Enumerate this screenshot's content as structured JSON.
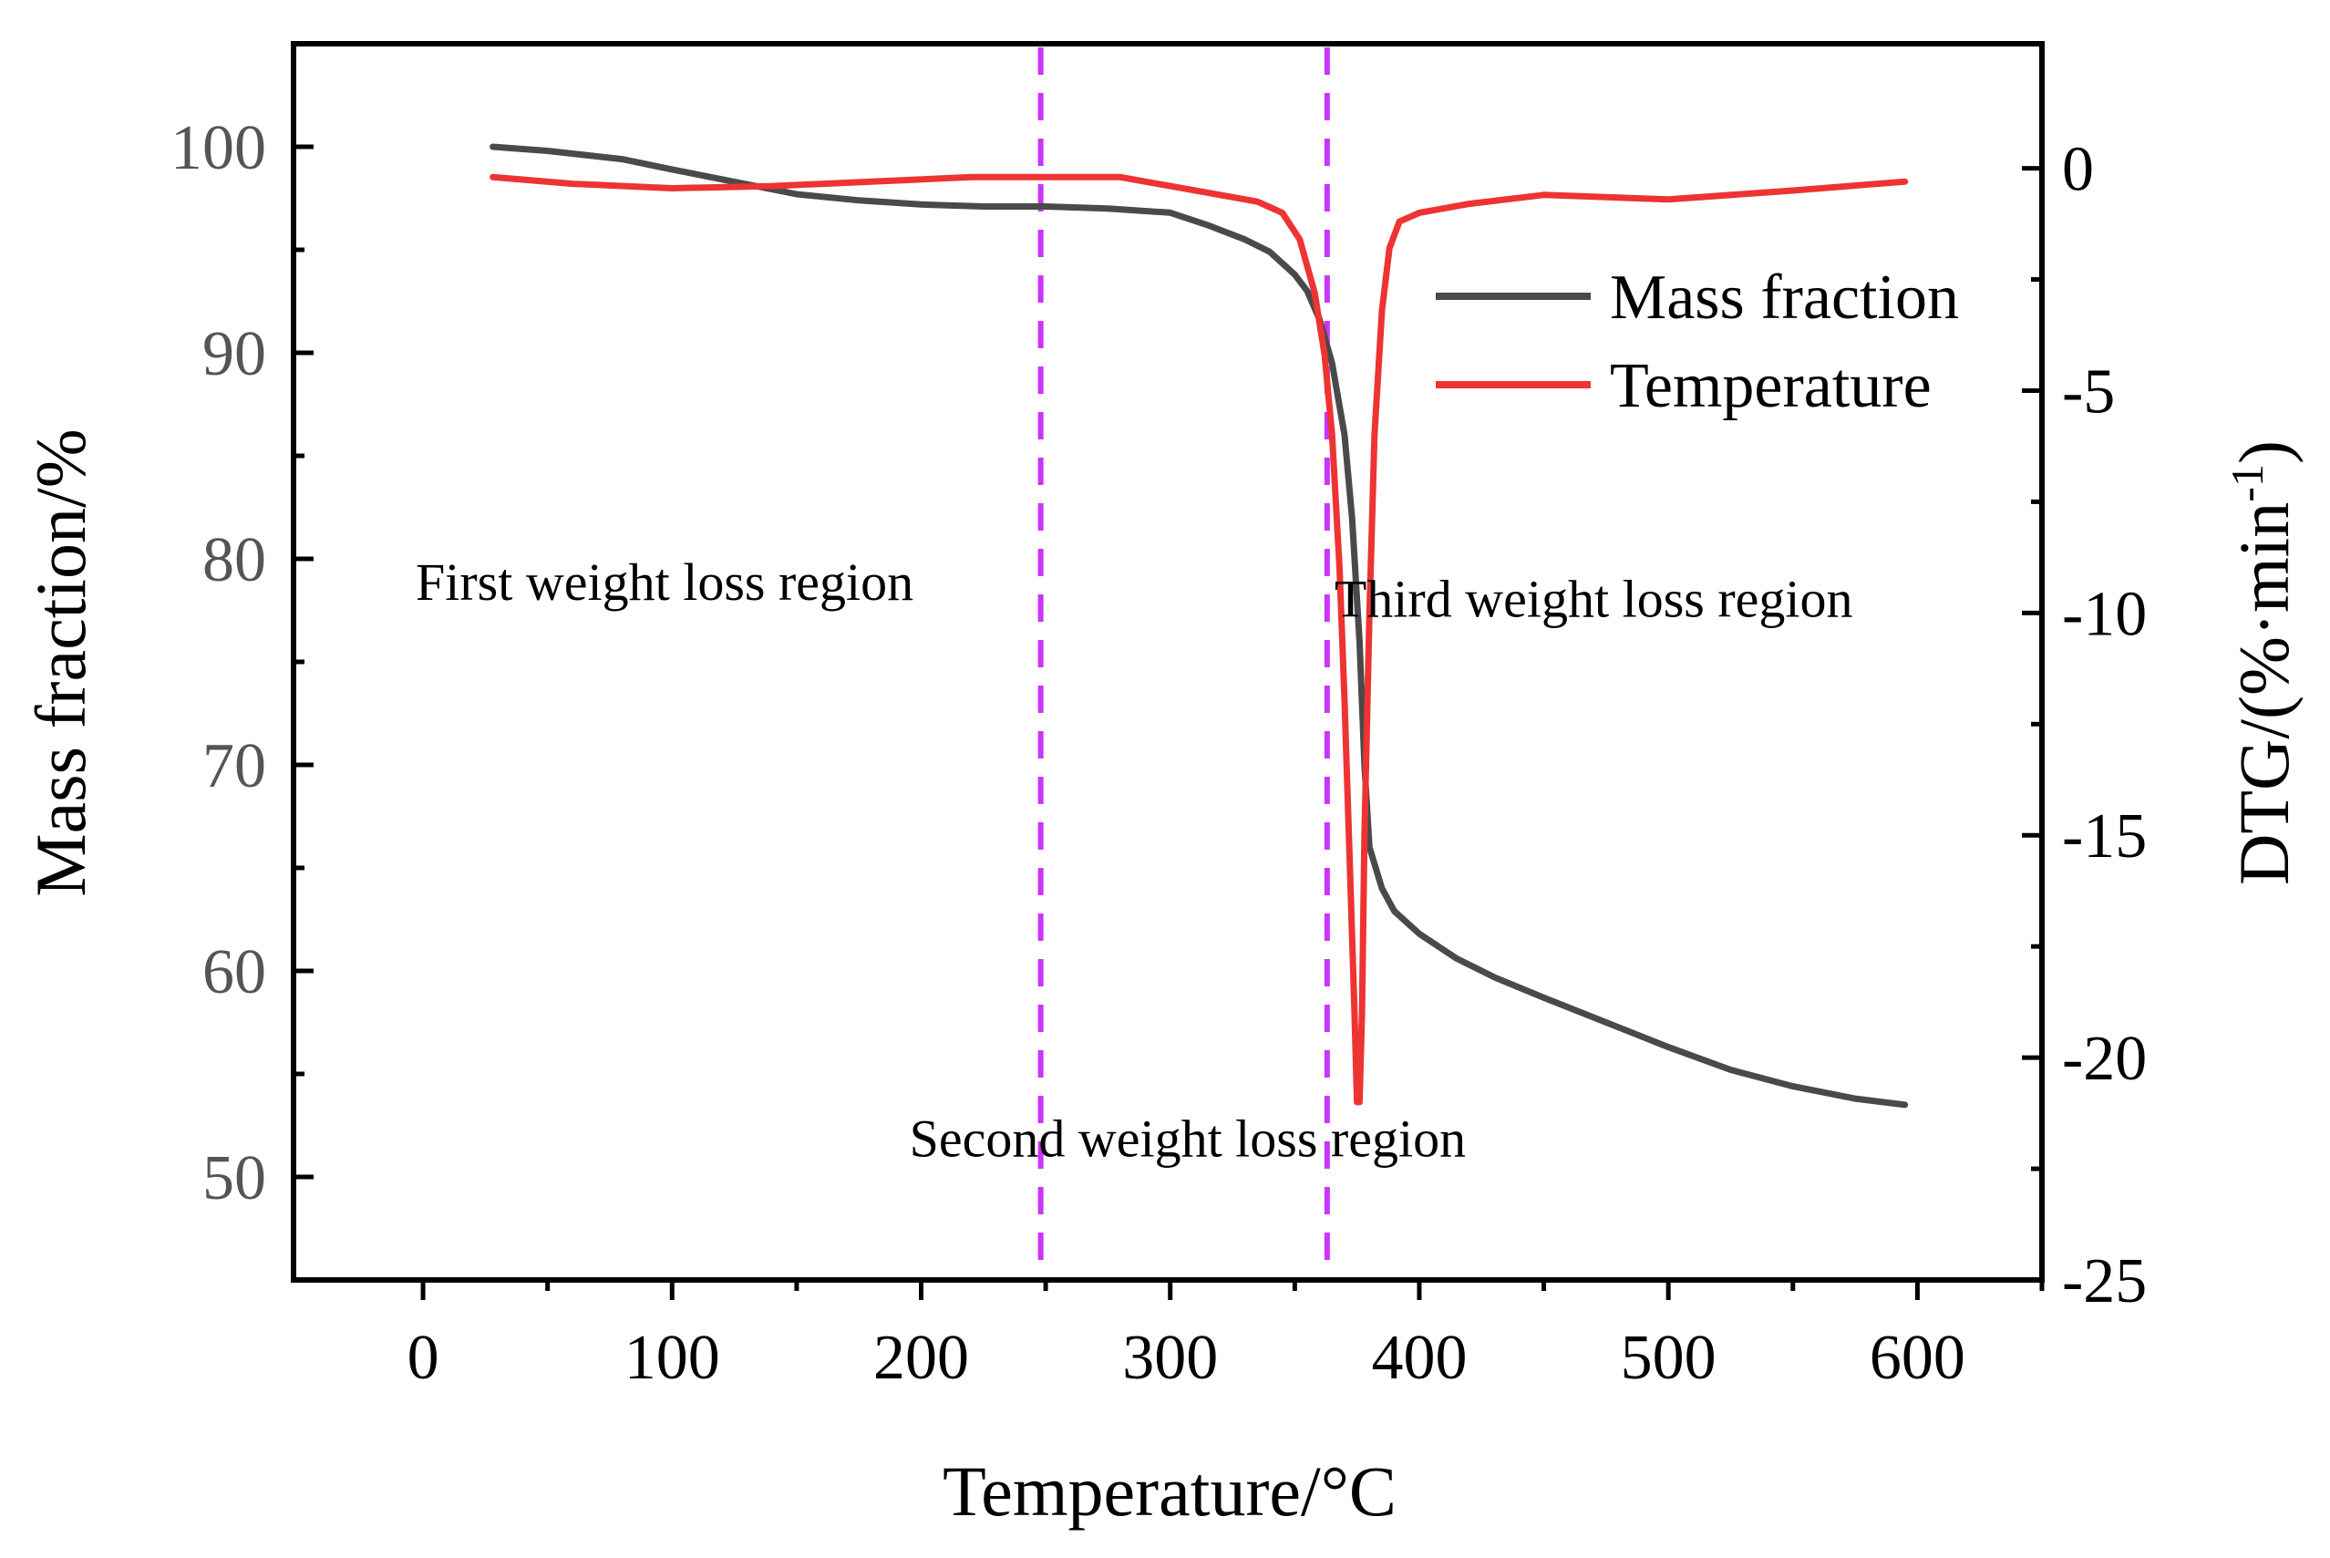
{
  "chart_data": {
    "type": "line",
    "title": "",
    "xlabel": "Temperature/°C",
    "ylabel": "Mass fraction/%",
    "y2label_base": "DTG/(%·min",
    "y2label_sup": "-1",
    "y2label_close": ")",
    "xlim": [
      -52,
      650
    ],
    "ylim": [
      45,
      105
    ],
    "y2lim": [
      -25,
      2.8
    ],
    "xticks": [
      0,
      100,
      200,
      300,
      400,
      500,
      600
    ],
    "yticks": [
      50,
      60,
      70,
      80,
      90,
      100
    ],
    "y2ticks": [
      0,
      -5,
      -10,
      -15,
      -20,
      -25
    ],
    "grid": false,
    "legend_position": "top-right",
    "vlines": {
      "color": "#CC33FF",
      "x": [
        248,
        363
      ]
    },
    "annotations": [
      {
        "text": "First weight loss region",
        "x": 97,
        "y": 78
      },
      {
        "text": "Second weight loss region",
        "x": 307,
        "y": 51
      },
      {
        "text": "Third weight loss region",
        "x": 470,
        "y": 77.2
      }
    ],
    "series": [
      {
        "name": "Mass fraction",
        "axis": "left",
        "color": "#4A4A4A",
        "x": [
          28,
          50,
          80,
          100,
          125,
          150,
          175,
          200,
          225,
          250,
          275,
          300,
          315,
          330,
          340,
          350,
          355,
          360,
          365,
          370,
          373,
          376,
          378,
          380,
          385,
          390,
          400,
          415,
          430,
          450,
          475,
          500,
          525,
          550,
          575,
          595
        ],
        "y": [
          100.0,
          99.8,
          99.4,
          98.9,
          98.3,
          97.7,
          97.4,
          97.2,
          97.1,
          97.1,
          97.0,
          96.8,
          96.2,
          95.5,
          94.9,
          93.8,
          93.0,
          91.6,
          89.5,
          86.0,
          82.0,
          76.0,
          70.0,
          66.0,
          64.0,
          62.9,
          61.8,
          60.6,
          59.7,
          58.7,
          57.5,
          56.3,
          55.2,
          54.4,
          53.8,
          53.5
        ]
      },
      {
        "name": "Temperature",
        "axis": "right",
        "color": "#EE3333",
        "x": [
          28,
          60,
          100,
          140,
          180,
          220,
          250,
          280,
          300,
          320,
          335,
          345,
          352,
          358,
          362,
          365,
          368,
          370,
          372,
          374,
          375,
          376,
          377,
          378,
          380,
          382,
          385,
          388,
          392,
          400,
          420,
          450,
          500,
          550,
          595
        ],
        "y": [
          -0.2,
          -0.35,
          -0.45,
          -0.4,
          -0.3,
          -0.2,
          -0.2,
          -0.2,
          -0.4,
          -0.6,
          -0.75,
          -1.0,
          -1.6,
          -2.8,
          -4.2,
          -6.0,
          -9.0,
          -12.0,
          -15.5,
          -19.0,
          -21.0,
          -21.0,
          -19.0,
          -15.0,
          -10.0,
          -6.0,
          -3.2,
          -1.8,
          -1.2,
          -1.0,
          -0.8,
          -0.6,
          -0.7,
          -0.5,
          -0.3
        ]
      }
    ]
  }
}
